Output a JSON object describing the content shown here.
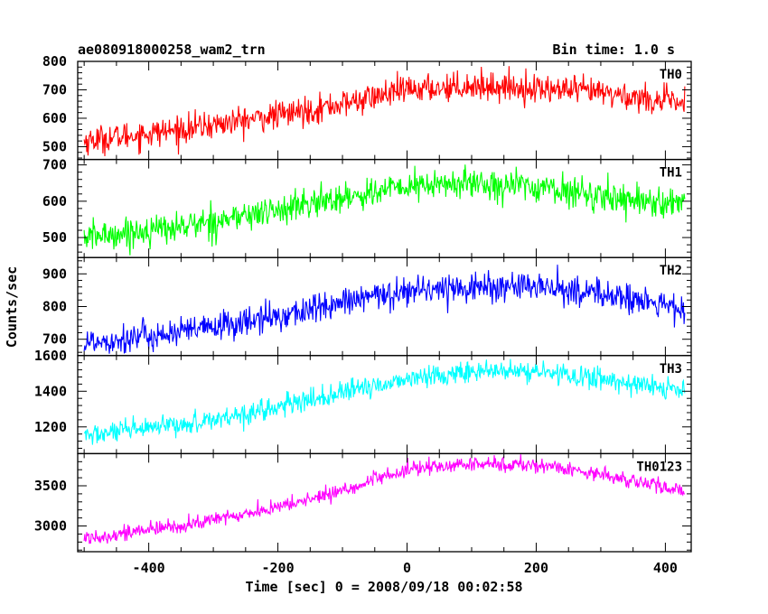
{
  "header": {
    "left_title": "ae080918000258_wam2_trn",
    "right_title": "Bin time: 1.0 s"
  },
  "chart_data": {
    "type": "line",
    "xlabel": "Time [sec] 0 = 2008/09/18 00:02:58",
    "ylabel": "Counts/sec",
    "xlim": [
      -510,
      440
    ],
    "x_ticks": [
      -400,
      -200,
      0,
      200,
      400
    ],
    "grid": false,
    "bin_time_s": 1.0,
    "panels": [
      {
        "name": "TH0",
        "color": "#ff0000",
        "ylim": [
          455,
          800
        ],
        "y_ticks": [
          500,
          600,
          700,
          800
        ],
        "trend": {
          "x": [
            -500,
            -350,
            -200,
            -100,
            0,
            100,
            200,
            300,
            430
          ],
          "y": [
            520,
            560,
            610,
            650,
            700,
            715,
            705,
            690,
            650
          ]
        },
        "noise": 45
      },
      {
        "name": "TH1",
        "color": "#00ff00",
        "ylim": [
          445,
          715
        ],
        "y_ticks": [
          500,
          600,
          700
        ],
        "trend": {
          "x": [
            -500,
            -350,
            -200,
            -100,
            0,
            100,
            200,
            300,
            430
          ],
          "y": [
            500,
            530,
            575,
            610,
            640,
            650,
            640,
            615,
            590
          ]
        },
        "noise": 38
      },
      {
        "name": "TH2",
        "color": "#0000ff",
        "ylim": [
          650,
          950
        ],
        "y_ticks": [
          700,
          800,
          900
        ],
        "trend": {
          "x": [
            -500,
            -350,
            -200,
            -100,
            0,
            100,
            200,
            300,
            430
          ],
          "y": [
            690,
            720,
            770,
            810,
            850,
            860,
            860,
            840,
            790
          ]
        },
        "noise": 42
      },
      {
        "name": "TH3",
        "color": "#00ffff",
        "ylim": [
          1050,
          1600
        ],
        "y_ticks": [
          1200,
          1400,
          1600
        ],
        "trend": {
          "x": [
            -500,
            -350,
            -200,
            -100,
            0,
            100,
            200,
            300,
            430
          ],
          "y": [
            1150,
            1210,
            1310,
            1390,
            1470,
            1510,
            1510,
            1470,
            1400
          ]
        },
        "noise": 55
      },
      {
        "name": "TH0123",
        "color": "#ff00ff",
        "ylim": [
          2680,
          3900
        ],
        "y_ticks": [
          3000,
          3500
        ],
        "trend": {
          "x": [
            -500,
            -350,
            -200,
            -100,
            0,
            100,
            200,
            300,
            430
          ],
          "y": [
            2850,
            3000,
            3230,
            3440,
            3700,
            3770,
            3760,
            3650,
            3420
          ]
        },
        "noise": 85
      }
    ]
  }
}
